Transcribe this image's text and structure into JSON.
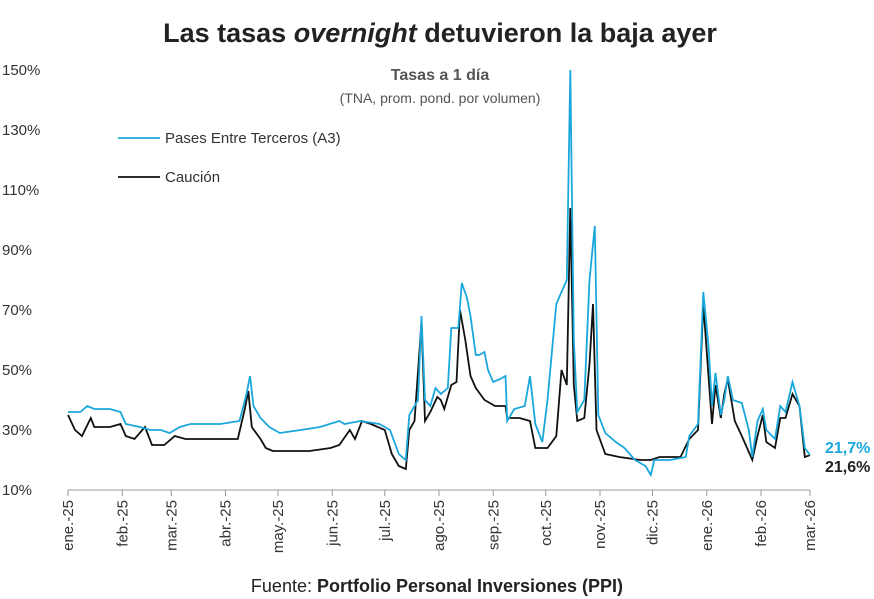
{
  "chart_data": {
    "type": "line",
    "title": {
      "pre": "Las tasas",
      "em": "overnight",
      "post": "detuvieron la baja ayer"
    },
    "subtitle": "Tasas a 1 día",
    "subtitle2": "(TNA, prom. pond. por volumen)",
    "source": {
      "label": "Fuente:",
      "name": "Portfolio Personal Inversiones (PPI)"
    },
    "xlim": [
      0,
      424
    ],
    "xticks": [
      {
        "value": 0,
        "label": "ene.-25"
      },
      {
        "value": 31,
        "label": "feb.-25"
      },
      {
        "value": 59,
        "label": "mar.-25"
      },
      {
        "value": 90,
        "label": "abr.-25"
      },
      {
        "value": 120,
        "label": "may.-25"
      },
      {
        "value": 151,
        "label": "jun.-25"
      },
      {
        "value": 181,
        "label": "jul.-25"
      },
      {
        "value": 212,
        "label": "ago.-25"
      },
      {
        "value": 243,
        "label": "sep.-25"
      },
      {
        "value": 273,
        "label": "oct.-25"
      },
      {
        "value": 304,
        "label": "nov.-25"
      },
      {
        "value": 334,
        "label": "dic.-25"
      },
      {
        "value": 365,
        "label": "ene.-26"
      },
      {
        "value": 396,
        "label": "feb.-26"
      },
      {
        "value": 424,
        "label": "mar.-26"
      }
    ],
    "ylim": [
      10,
      150
    ],
    "yticks": [
      {
        "value": 10,
        "label": "10%"
      },
      {
        "value": 30,
        "label": "30%"
      },
      {
        "value": 50,
        "label": "50%"
      },
      {
        "value": 70,
        "label": "70%"
      },
      {
        "value": 90,
        "label": "90%"
      },
      {
        "value": 110,
        "label": "110%"
      },
      {
        "value": 130,
        "label": "130%"
      },
      {
        "value": 150,
        "label": "150%"
      }
    ],
    "series": [
      {
        "name": "Pases Entre Terceros (A3)",
        "color": "#1aa7dc",
        "last_label": "21,7%",
        "x": [
          0,
          7,
          11,
          15,
          24,
          30,
          33,
          41,
          47,
          53,
          58,
          64,
          70,
          75,
          87,
          98,
          102,
          104,
          106,
          110,
          115,
          121,
          133,
          144,
          155,
          158,
          167,
          178,
          184,
          189,
          193,
          195,
          200,
          202,
          204,
          207,
          210,
          213,
          217,
          219,
          223,
          225,
          228,
          230,
          233,
          235,
          238,
          240,
          243,
          247,
          250,
          251,
          255,
          261,
          264,
          267,
          271,
          274,
          279,
          282,
          285,
          287,
          289,
          291,
          295,
          298,
          301,
          303,
          307,
          313,
          318,
          324,
          330,
          333,
          335,
          344,
          353,
          355,
          360,
          363,
          366,
          368,
          370,
          373,
          375,
          377,
          380,
          385,
          389,
          391,
          394,
          397,
          399,
          404,
          407,
          410,
          414,
          418,
          421,
          424
        ],
        "values": [
          36,
          36,
          38,
          37,
          37,
          36,
          32,
          31,
          30,
          30,
          29,
          31,
          32,
          32,
          32,
          33,
          42,
          48,
          38,
          34,
          31,
          29,
          30,
          31,
          33,
          32,
          33,
          32,
          30,
          22,
          20,
          35,
          40,
          68,
          40,
          38,
          44,
          42,
          44,
          64,
          64,
          79,
          74,
          68,
          55,
          55,
          56,
          50,
          46,
          47,
          48,
          33,
          37,
          38,
          48,
          32,
          26,
          40,
          72,
          76,
          80,
          150,
          60,
          36,
          40,
          80,
          98,
          35,
          29,
          26,
          24,
          20,
          18,
          15,
          20,
          20,
          21,
          28,
          32,
          76,
          58,
          38,
          49,
          35,
          40,
          48,
          40,
          39,
          30,
          21,
          33,
          37,
          30,
          27,
          38,
          36,
          46,
          38,
          24,
          21.7
        ]
      },
      {
        "name": "Caución",
        "color": "#111111",
        "last_label": "21,6%",
        "x": [
          0,
          4,
          8,
          13,
          15,
          24,
          30,
          33,
          38,
          44,
          48,
          55,
          61,
          67,
          75,
          87,
          97,
          101,
          103,
          105,
          110,
          113,
          117,
          127,
          138,
          150,
          155,
          161,
          164,
          168,
          173,
          181,
          185,
          189,
          193,
          195,
          198,
          202,
          204,
          207,
          211,
          213,
          215,
          219,
          222,
          224,
          227,
          230,
          233,
          238,
          244,
          250,
          251,
          258,
          264,
          267,
          274,
          279,
          282,
          285,
          287,
          289,
          291,
          295,
          298,
          300,
          302,
          307,
          315,
          327,
          333,
          338,
          350,
          355,
          360,
          363,
          366,
          368,
          370,
          373,
          375,
          377,
          381,
          385,
          391,
          394,
          397,
          399,
          404,
          407,
          410,
          414,
          418,
          421,
          424
        ],
        "values": [
          35,
          30,
          28,
          34,
          31,
          31,
          32,
          28,
          27,
          31,
          25,
          25,
          28,
          27,
          27,
          27,
          27,
          37,
          43,
          31,
          27,
          24,
          23,
          23,
          23,
          24,
          25,
          30,
          27,
          33,
          32,
          30,
          22,
          18,
          17,
          30,
          33,
          66,
          33,
          36,
          41,
          40,
          37,
          45,
          46,
          70,
          60,
          48,
          44,
          40,
          38,
          38,
          34,
          34,
          33,
          24,
          24,
          28,
          50,
          45,
          104,
          45,
          33,
          34,
          52,
          72,
          30,
          22,
          21,
          20,
          20,
          21,
          21,
          27,
          30,
          72,
          48,
          32,
          45,
          34,
          42,
          47,
          33,
          28,
          20,
          28,
          35,
          26,
          24,
          34,
          34,
          42,
          38,
          21,
          21.6
        ]
      }
    ]
  }
}
